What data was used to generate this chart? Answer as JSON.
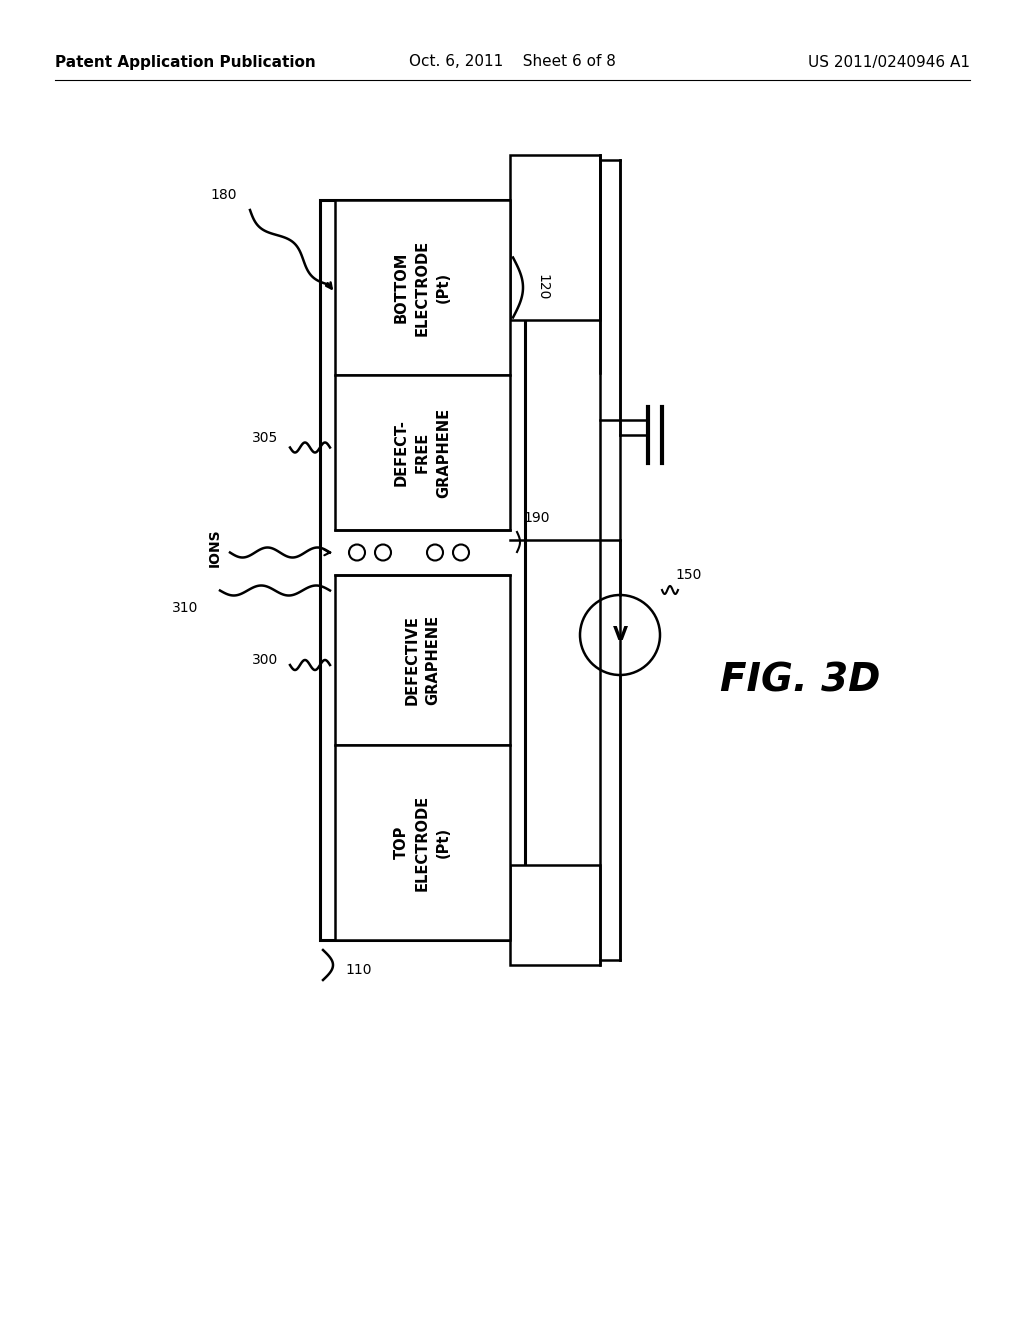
{
  "bg_color": "#ffffff",
  "header_left": "Patent Application Publication",
  "header_center": "Oct. 6, 2011    Sheet 6 of 8",
  "header_right": "US 2011/0240946 A1",
  "fig_label": "FIG. 3D",
  "label_180": "180",
  "label_120": "120",
  "label_150": "150",
  "label_190": "190",
  "label_305": "305",
  "label_310": "310",
  "label_300": "300",
  "label_110": "110",
  "label_ions": "IONS",
  "text_bottom_electrode": "BOTTOM\nELECTRODE\n(Pt)",
  "text_defect_free": "DEFECT-\nFREE\nGRAPHENE",
  "text_defective": "DEFECTIVE\nGRAPHENE",
  "text_top_electrode": "TOP\nELECTRODE\n(Pt)",
  "line_color": "#000000"
}
